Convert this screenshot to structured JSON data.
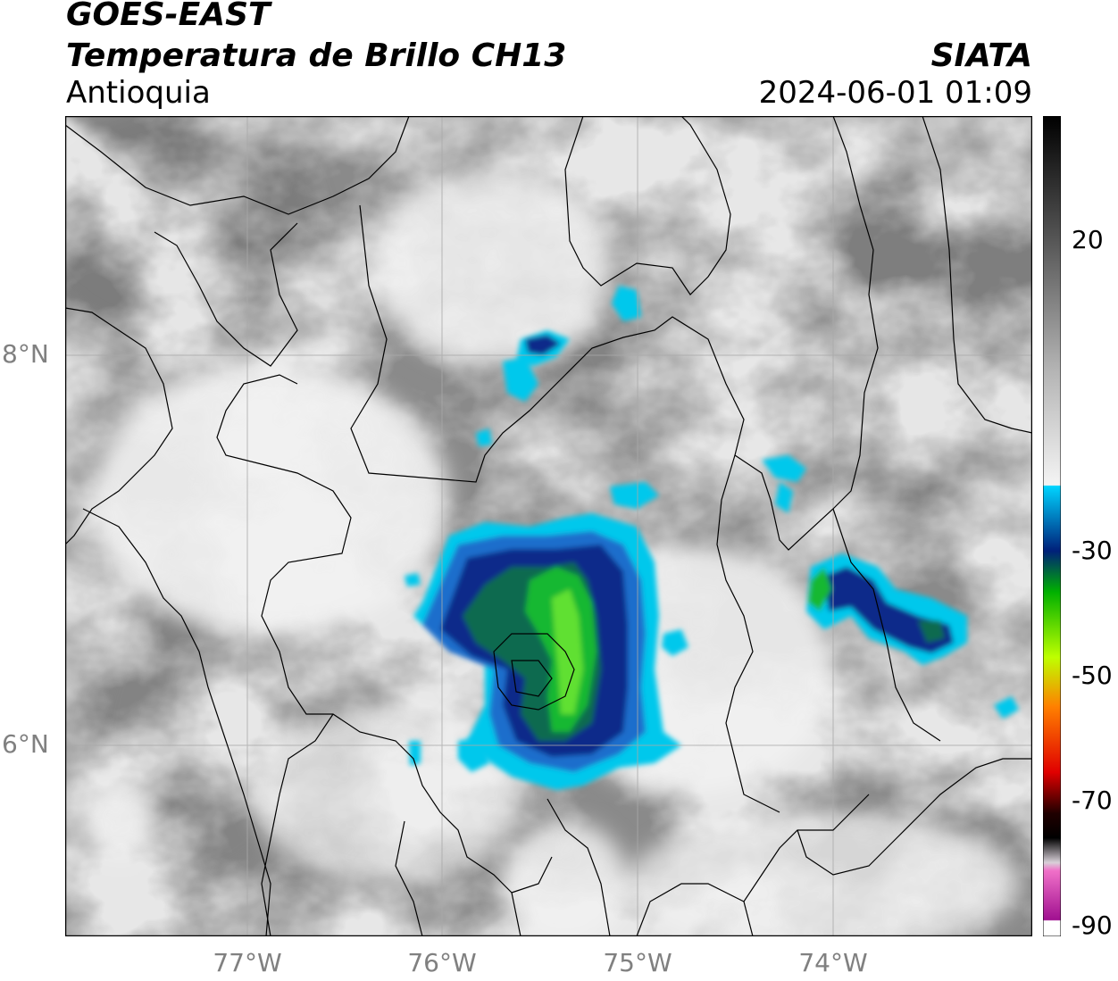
{
  "header": {
    "satellite": "GOES-EAST",
    "product": "Temperatura de Brillo CH13",
    "region": "Antioquia",
    "organization": "SIATA",
    "datetime": "2024-06-01 01:09"
  },
  "map": {
    "lat_ticks": [
      "8°N",
      "6°N"
    ],
    "lon_ticks": [
      "77°W",
      "76°W",
      "75°W",
      "74°W"
    ],
    "background": "#8a8a8a",
    "border_color": "#000000",
    "grid_color": "#a9a9a9"
  },
  "colorbar": {
    "tick_labels": [
      "20",
      "-30",
      "-50",
      "-70",
      "-90"
    ],
    "stops": [
      {
        "value": 32,
        "color": "#000000"
      },
      {
        "value": 20,
        "color": "#555555"
      },
      {
        "value": 0,
        "color": "#b4b4b4"
      },
      {
        "value": -20,
        "color": "#f4f4f4"
      },
      {
        "value": -21,
        "color": "#00d4ff"
      },
      {
        "value": -30,
        "color": "#00207a"
      },
      {
        "value": -36,
        "color": "#00b000"
      },
      {
        "value": -45,
        "color": "#bfff00"
      },
      {
        "value": -52,
        "color": "#ff8000"
      },
      {
        "value": -60,
        "color": "#e00000"
      },
      {
        "value": -66,
        "color": "#200000"
      },
      {
        "value": -70,
        "color": "#000000"
      },
      {
        "value": -78,
        "color": "#d8d0d8"
      },
      {
        "value": -80,
        "color": "#f070c8"
      },
      {
        "value": -88,
        "color": "#a01090"
      },
      {
        "value": -90,
        "color": "#ffffff"
      }
    ]
  }
}
